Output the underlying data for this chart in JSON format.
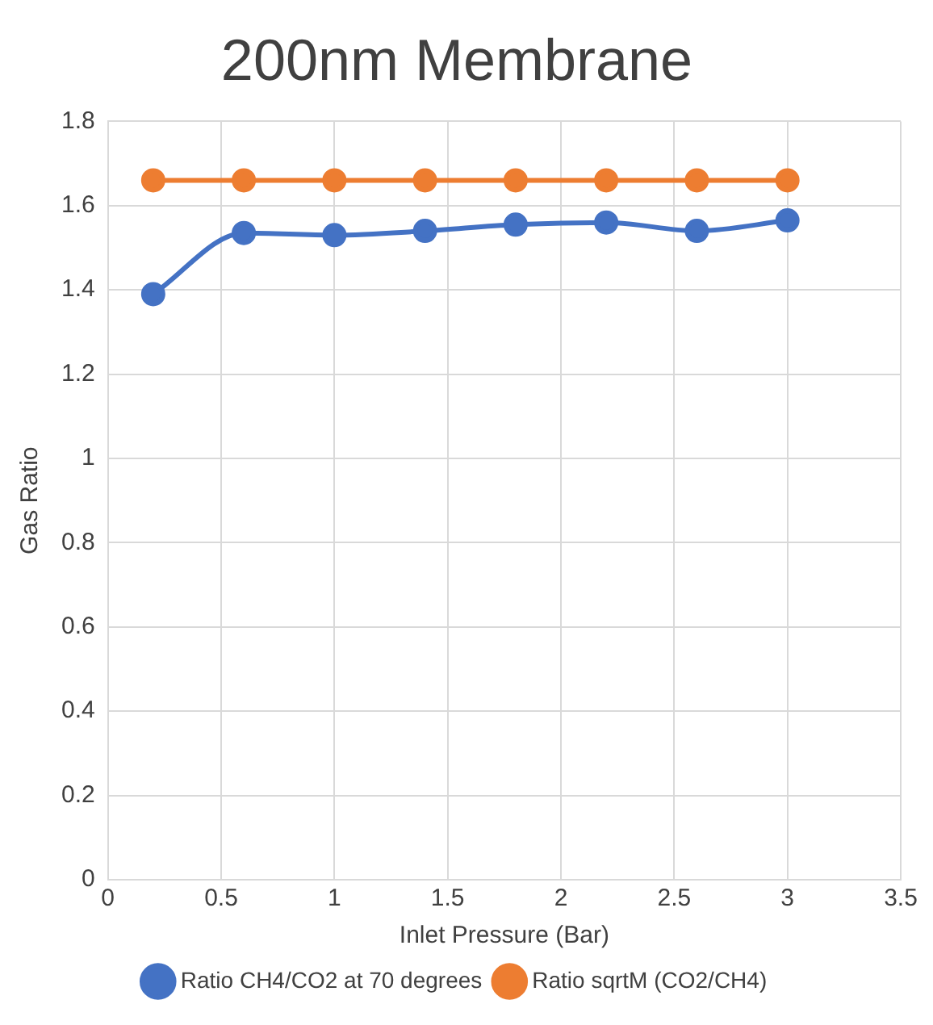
{
  "chart_data": {
    "type": "line",
    "title": "200nm Membrane",
    "xlabel": "Inlet Pressure (Bar)",
    "ylabel": "Gas Ratio",
    "x": [
      0.2,
      0.6,
      1,
      1.4,
      1.8,
      2.2,
      2.6,
      3
    ],
    "series": [
      {
        "name": "Ratio CH4/CO2 at 70 degrees",
        "color": "#4472c4",
        "values": [
          1.39,
          1.535,
          1.53,
          1.54,
          1.555,
          1.56,
          1.54,
          1.565
        ]
      },
      {
        "name": "Ratio sqrtM (CO2/CH4)",
        "color": "#ed7d31",
        "values": [
          1.66,
          1.66,
          1.66,
          1.66,
          1.66,
          1.66,
          1.66,
          1.66
        ]
      }
    ],
    "xlim": [
      0,
      3.5
    ],
    "xticks": [
      0,
      0.5,
      1,
      1.5,
      2,
      2.5,
      3,
      3.5
    ],
    "ylim": [
      0,
      1.8
    ],
    "yticks": [
      0,
      0.2,
      0.4,
      0.6,
      0.8,
      1,
      1.2,
      1.4,
      1.6,
      1.8
    ],
    "grid": true,
    "legend": "bottom",
    "marker": "circle",
    "line_style": "solid"
  }
}
